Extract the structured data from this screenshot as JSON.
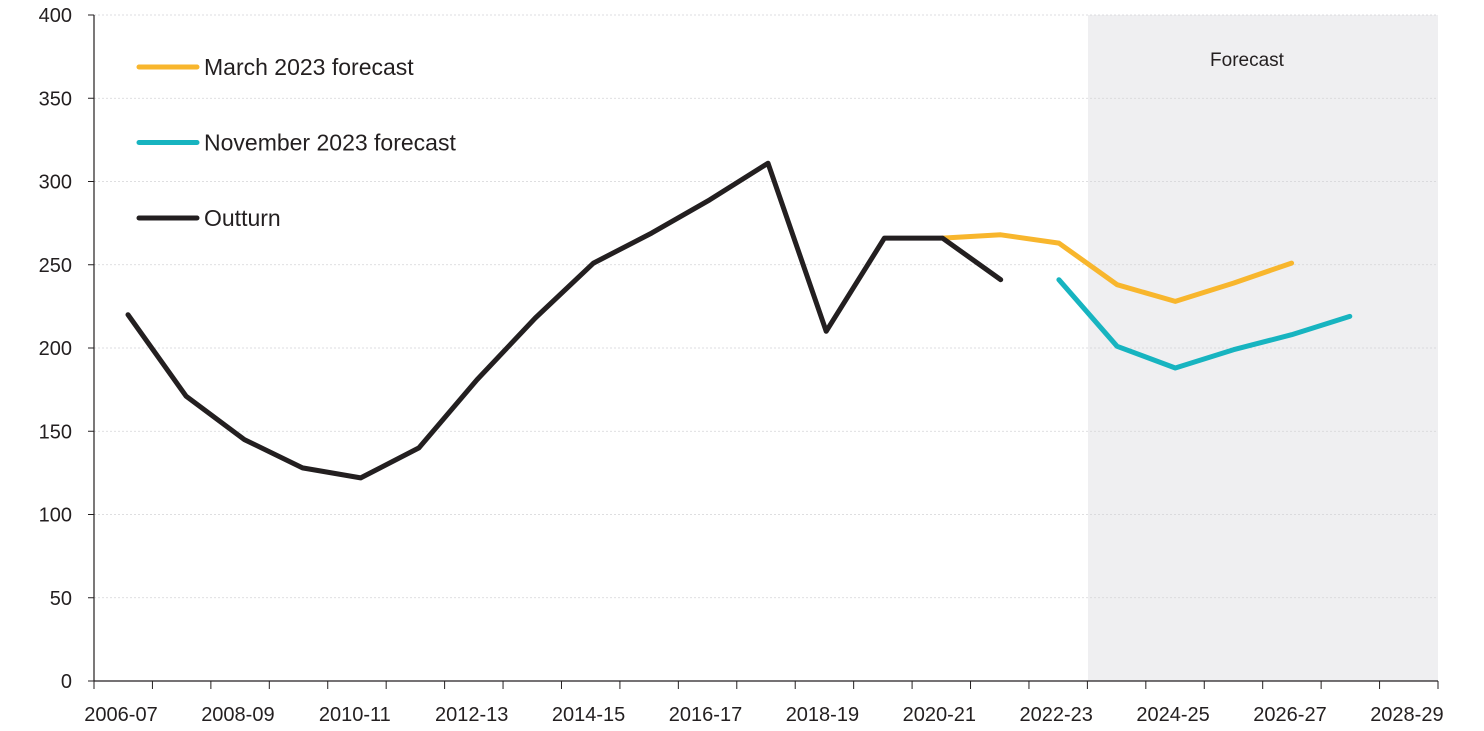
{
  "chart_data": {
    "type": "line",
    "title": "",
    "xlabel": "",
    "ylabel": "",
    "ylim": [
      0,
      400
    ],
    "yticks": [
      0,
      50,
      100,
      150,
      200,
      250,
      300,
      350,
      400
    ],
    "x_tick_labels": [
      "2006-07",
      "2008-09",
      "2010-11",
      "2012-13",
      "2014-15",
      "2016-17",
      "2018-19",
      "2020-21",
      "2022-23",
      "2024-25",
      "2026-27",
      "2028-29"
    ],
    "categories": [
      "2006-07",
      "2007-08",
      "2008-09",
      "2009-10",
      "2010-11",
      "2011-12",
      "2012-13",
      "2013-14",
      "2014-15",
      "2015-16",
      "2016-17",
      "2017-18",
      "2018-19",
      "2019-20",
      "2020-21",
      "2021-22",
      "2022-23",
      "2023-24",
      "2024-25",
      "2025-26",
      "2026-27",
      "2027-28",
      "2028-29"
    ],
    "grid": true,
    "legend_position": "top-left",
    "shaded_region": {
      "label": "Forecast",
      "from": "2022-23",
      "to": "2028-29",
      "color": "#efeff1"
    },
    "series": [
      {
        "name": "March 2023 forecast",
        "color": "#f8b62d",
        "x": [
          "2020-21",
          "2021-22",
          "2022-23",
          "2023-24",
          "2024-25",
          "2025-26",
          "2026-27"
        ],
        "values": [
          266,
          268,
          263,
          238,
          228,
          239,
          251
        ]
      },
      {
        "name": "November 2023 forecast",
        "color": "#17b4c0",
        "x": [
          "2022-23",
          "2023-24",
          "2024-25",
          "2025-26",
          "2026-27",
          "2027-28"
        ],
        "values": [
          241,
          201,
          188,
          199,
          208,
          219
        ]
      },
      {
        "name": "Outturn",
        "color": "#231f20",
        "x": [
          "2006-07",
          "2007-08",
          "2008-09",
          "2009-10",
          "2010-11",
          "2011-12",
          "2012-13",
          "2013-14",
          "2014-15",
          "2015-16",
          "2016-17",
          "2017-18",
          "2018-19",
          "2019-20",
          "2020-21",
          "2021-22",
          "2022-23"
        ],
        "values": [
          220,
          171,
          145,
          128,
          122,
          140,
          181,
          218,
          251,
          269,
          289,
          311,
          210,
          266,
          266,
          241,
          null
        ]
      }
    ]
  }
}
